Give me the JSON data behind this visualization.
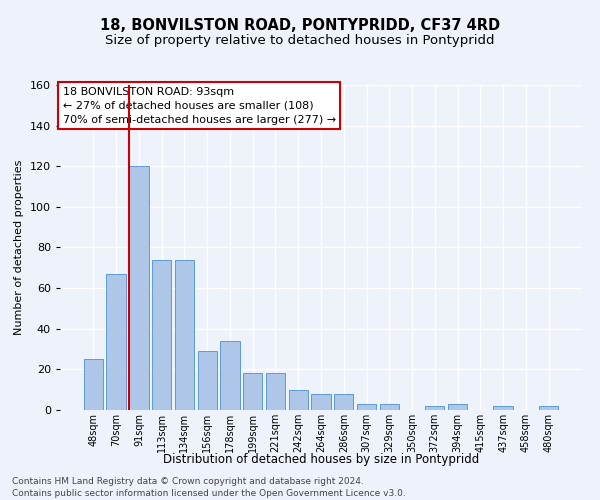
{
  "title": "18, BONVILSTON ROAD, PONTYPRIDD, CF37 4RD",
  "subtitle": "Size of property relative to detached houses in Pontypridd",
  "xlabel": "Distribution of detached houses by size in Pontypridd",
  "ylabel": "Number of detached properties",
  "bar_labels": [
    "48sqm",
    "70sqm",
    "91sqm",
    "113sqm",
    "134sqm",
    "156sqm",
    "178sqm",
    "199sqm",
    "221sqm",
    "242sqm",
    "264sqm",
    "286sqm",
    "307sqm",
    "329sqm",
    "350sqm",
    "372sqm",
    "394sqm",
    "415sqm",
    "437sqm",
    "458sqm",
    "480sqm"
  ],
  "bar_values": [
    25,
    67,
    120,
    74,
    74,
    29,
    34,
    18,
    18,
    10,
    8,
    8,
    3,
    3,
    0,
    2,
    3,
    0,
    2,
    0,
    2
  ],
  "bar_color": "#aec6e8",
  "bar_edge_color": "#5b9bd5",
  "vline_color": "#cc0000",
  "vline_index": 2,
  "ylim": [
    0,
    160
  ],
  "yticks": [
    0,
    20,
    40,
    60,
    80,
    100,
    120,
    140,
    160
  ],
  "annotation_line1": "18 BONVILSTON ROAD: 93sqm",
  "annotation_line2": "← 27% of detached houses are smaller (108)",
  "annotation_line3": "70% of semi-detached houses are larger (277) →",
  "footer_line1": "Contains HM Land Registry data © Crown copyright and database right 2024.",
  "footer_line2": "Contains public sector information licensed under the Open Government Licence v3.0.",
  "background_color": "#eef2fb",
  "grid_color": "#ffffff",
  "title_fontsize": 10.5,
  "subtitle_fontsize": 9.5,
  "annotation_fontsize": 8,
  "footer_fontsize": 6.5
}
